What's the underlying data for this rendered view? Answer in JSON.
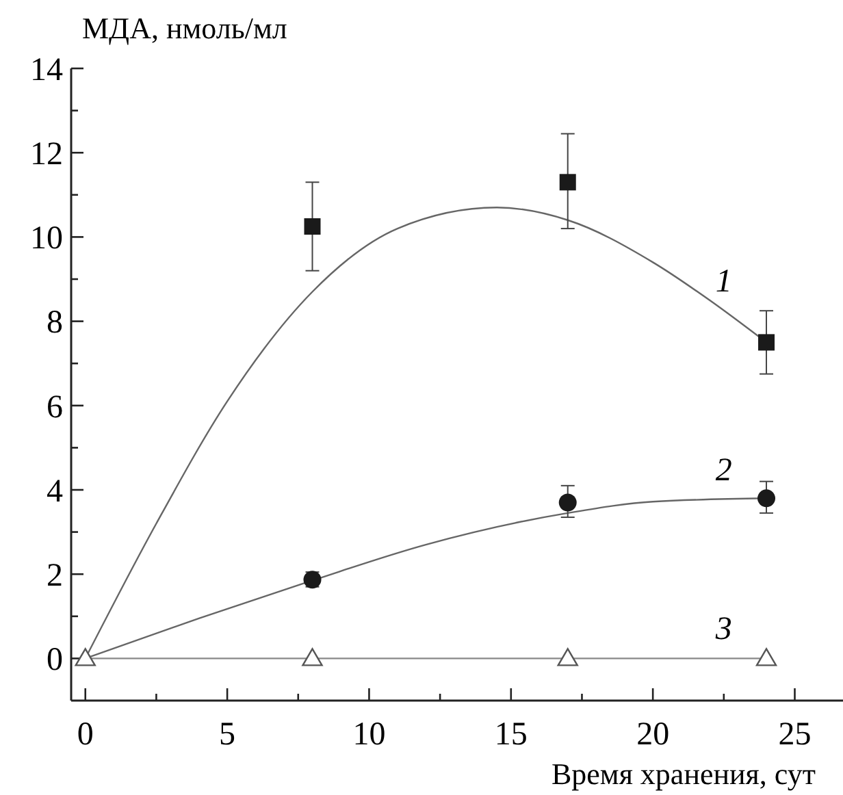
{
  "chart_data": {
    "type": "scatter",
    "xlabel": "Время хранения, сут",
    "ylabel": "МДА, нмоль/мл",
    "xlim": [
      -0.5,
      26.7
    ],
    "ylim": [
      -1,
      14
    ],
    "xticks": [
      0,
      {
        "value": 2.5,
        "label": null
      },
      5,
      {
        "value": 7.5,
        "label": null
      },
      10,
      {
        "value": 12.5,
        "label": null
      },
      15,
      {
        "value": 17.5,
        "label": null
      },
      20,
      {
        "value": 22.5,
        "label": null
      },
      25
    ],
    "yticks": [
      0,
      {
        "value": 1,
        "label": null
      },
      2,
      {
        "value": 3,
        "label": null
      },
      4,
      {
        "value": 5,
        "label": null
      },
      6,
      {
        "value": 7,
        "label": null
      },
      8,
      {
        "value": 9,
        "label": null
      },
      10,
      {
        "value": 11,
        "label": null
      },
      12,
      {
        "value": 13,
        "label": null
      },
      14
    ],
    "grid": false,
    "series": [
      {
        "type": "line",
        "name": "1",
        "color": "#666666",
        "x": [
          0,
          2.5,
          5,
          8,
          11,
          14.5,
          17,
          20,
          22,
          24
        ],
        "values": [
          0,
          3.2,
          6.1,
          8.7,
          10.2,
          10.7,
          10.4,
          9.4,
          8.5,
          7.5
        ]
      },
      {
        "type": "line",
        "name": "2",
        "color": "#666666",
        "x": [
          0,
          4,
          8,
          12,
          17,
          20,
          24
        ],
        "values": [
          0,
          0.95,
          1.85,
          2.7,
          3.45,
          3.72,
          3.8
        ]
      },
      {
        "type": "line",
        "name": "3",
        "color": "#888888",
        "x": [
          0,
          24
        ],
        "values": [
          0,
          0
        ]
      },
      {
        "marker": "square",
        "color": "#1a1a1a",
        "x": [
          8,
          17,
          24
        ],
        "values": [
          10.25,
          11.3,
          7.5
        ],
        "errors": [
          [
            9.2,
            11.3
          ],
          [
            10.2,
            12.45
          ],
          [
            6.75,
            8.25
          ]
        ]
      },
      {
        "marker": "circle",
        "color": "#1a1a1a",
        "x": [
          8,
          17,
          24
        ],
        "values": [
          1.87,
          3.7,
          3.8
        ],
        "errors": [
          [
            1.7,
            2.05
          ],
          [
            3.35,
            4.1
          ],
          [
            3.45,
            4.2
          ]
        ]
      },
      {
        "marker": "triangle",
        "color": "#555555",
        "x": [
          0,
          8,
          17,
          24
        ],
        "values": [
          0,
          0,
          0,
          0
        ]
      }
    ]
  }
}
